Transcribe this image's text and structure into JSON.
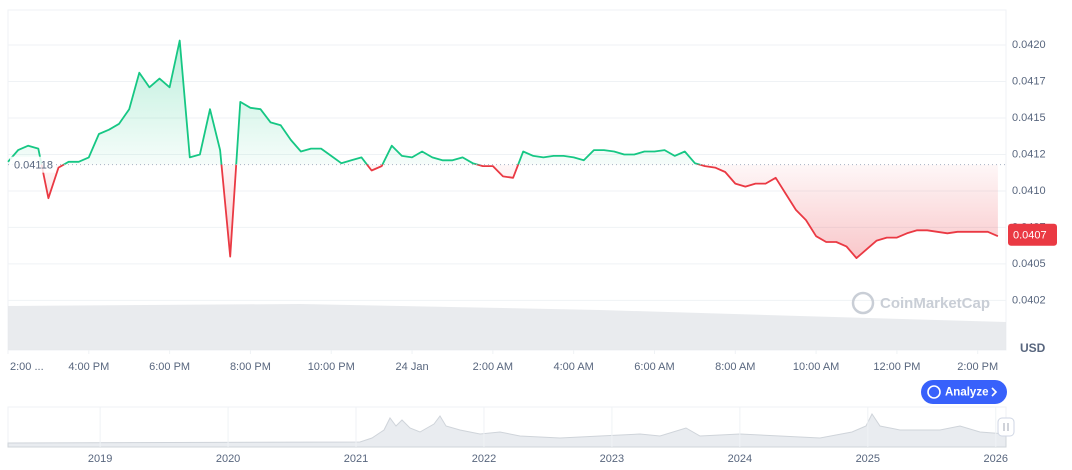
{
  "chart_data": {
    "type": "line",
    "x": [
      14,
      14.25,
      14.5,
      14.75,
      15,
      15.25,
      15.5,
      15.75,
      16,
      16.25,
      16.5,
      16.75,
      17,
      17.25,
      17.5,
      17.75,
      18,
      18.25,
      18.5,
      18.75,
      19,
      19.25,
      19.5,
      19.75,
      20,
      20.25,
      20.5,
      20.75,
      21,
      21.25,
      21.5,
      21.75,
      22,
      22.25,
      22.5,
      22.75,
      23,
      23.25,
      23.5,
      23.75,
      24,
      24.25,
      24.5,
      24.75,
      25,
      25.25,
      25.5,
      25.75,
      26,
      26.25,
      26.5,
      26.75,
      27,
      27.25,
      27.5,
      27.75,
      28,
      28.25,
      28.5,
      28.75,
      29,
      29.25,
      29.5,
      29.75,
      30,
      30.25,
      30.5,
      30.75,
      31,
      31.25,
      31.5,
      31.75,
      32,
      32.25,
      32.5,
      32.75,
      33,
      33.25,
      33.5,
      33.75,
      34,
      34.25,
      34.5,
      34.75,
      35,
      35.25,
      35.5,
      35.75,
      36,
      36.25,
      36.5,
      36.75,
      37,
      37.25,
      37.5,
      37.75,
      38,
      38.25,
      38.5
    ],
    "values": [
      0.0412,
      0.04128,
      0.04131,
      0.04129,
      0.04095,
      0.04116,
      0.0412,
      0.0412,
      0.04123,
      0.04139,
      0.04142,
      0.04146,
      0.04156,
      0.04181,
      0.04171,
      0.04177,
      0.04171,
      0.04203,
      0.04123,
      0.04125,
      0.04156,
      0.04128,
      0.04055,
      0.04161,
      0.04157,
      0.04156,
      0.04147,
      0.04145,
      0.04135,
      0.04127,
      0.04129,
      0.04129,
      0.04124,
      0.04119,
      0.04121,
      0.04123,
      0.04114,
      0.04117,
      0.04131,
      0.04124,
      0.04123,
      0.04127,
      0.04123,
      0.04121,
      0.04121,
      0.04123,
      0.04119,
      0.04117,
      0.04117,
      0.0411,
      0.04109,
      0.04127,
      0.04124,
      0.04123,
      0.04124,
      0.04124,
      0.04123,
      0.04121,
      0.04128,
      0.04128,
      0.04127,
      0.04125,
      0.04125,
      0.04127,
      0.04127,
      0.04128,
      0.04124,
      0.04127,
      0.04119,
      0.04117,
      0.04116,
      0.04113,
      0.04105,
      0.04103,
      0.04105,
      0.04105,
      0.04109,
      0.04098,
      0.04087,
      0.0408,
      0.04069,
      0.04065,
      0.04065,
      0.04062,
      0.04054,
      0.0406,
      0.04066,
      0.04068,
      0.04068,
      0.04071,
      0.04073,
      0.04073,
      0.04072,
      0.04071,
      0.04072,
      0.04072,
      0.04072,
      0.04072,
      0.04069
    ],
    "baseline": 0.04118,
    "current_price": 0.0407,
    "color_up": "#16c784",
    "color_down": "#ea3943",
    "xlim": [
      14,
      38.7
    ],
    "xticks": [
      {
        "value": 14,
        "label": "2:00 ..."
      },
      {
        "value": 16,
        "label": "4:00 PM"
      },
      {
        "value": 18,
        "label": "6:00 PM"
      },
      {
        "value": 20,
        "label": "8:00 PM"
      },
      {
        "value": 22,
        "label": "10:00 PM"
      },
      {
        "value": 24,
        "label": "24 Jan"
      },
      {
        "value": 26,
        "label": "2:00 AM"
      },
      {
        "value": 28,
        "label": "4:00 AM"
      },
      {
        "value": 30,
        "label": "6:00 AM"
      },
      {
        "value": 32,
        "label": "8:00 AM"
      },
      {
        "value": 34,
        "label": "10:00 AM"
      },
      {
        "value": 36,
        "label": "12:00 PM"
      },
      {
        "value": 38,
        "label": "2:00 PM"
      }
    ],
    "ylim": [
      0.03991,
      0.04224
    ],
    "yticks": [
      {
        "value": 0.04025,
        "label": "0.0402"
      },
      {
        "value": 0.0405,
        "label": "0.0405"
      },
      {
        "value": 0.04075,
        "label": "0.0407"
      },
      {
        "value": 0.041,
        "label": "0.0410"
      },
      {
        "value": 0.04125,
        "label": "0.0412"
      },
      {
        "value": 0.0415,
        "label": "0.0415"
      },
      {
        "value": 0.04175,
        "label": "0.0417"
      },
      {
        "value": 0.042,
        "label": "0.0420"
      }
    ],
    "grid": true,
    "y_unit": "USD"
  },
  "navigator": {
    "xlim": [
      2018.28,
      2026.08
    ],
    "xticks": [
      2019,
      2020,
      2021,
      2022,
      2023,
      2024,
      2025,
      2026
    ]
  },
  "watermark": "CoinMarketCap",
  "button": "Analyze"
}
